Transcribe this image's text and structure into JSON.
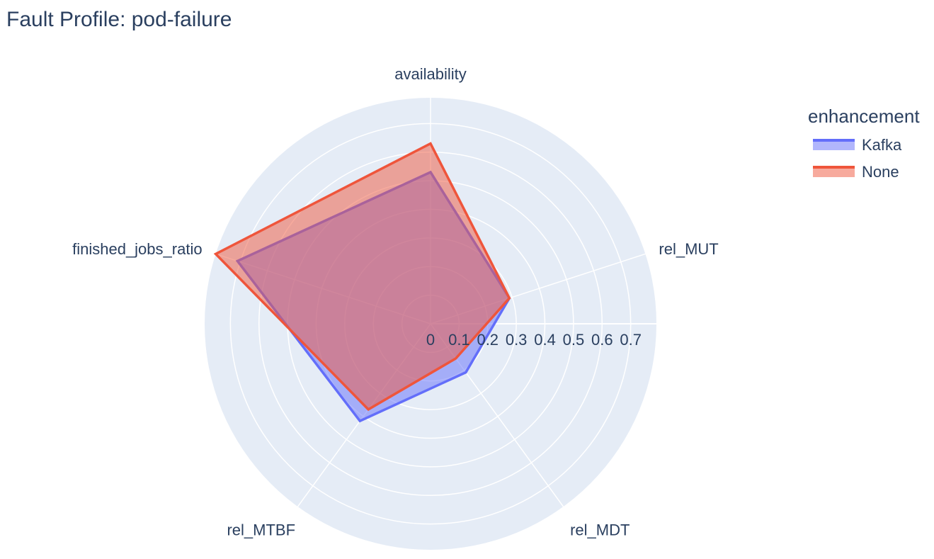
{
  "chart_data": {
    "type": "radar",
    "title": "Fault Profile: pod-failure",
    "axes": [
      "availability",
      "rel_MUT",
      "rel_MDT",
      "rel_MTBF",
      "finished_jobs_ratio"
    ],
    "radial_ticks": [
      "0",
      "0.1",
      "0.2",
      "0.3",
      "0.4",
      "0.5",
      "0.6",
      "0.7"
    ],
    "radial_range": [
      0,
      0.79
    ],
    "legend_title": "enhancement",
    "legend_placement": "top-right",
    "grid": true,
    "series": [
      {
        "name": "Kafka",
        "color": "#636efa",
        "fill": "rgba(99,110,250,0.5)",
        "values": [
          0.53,
          0.29,
          0.21,
          0.42,
          0.71
        ]
      },
      {
        "name": "None",
        "color": "#ef553b",
        "fill": "rgba(239,85,59,0.5)",
        "values": [
          0.63,
          0.29,
          0.15,
          0.37,
          0.79
        ]
      }
    ]
  }
}
